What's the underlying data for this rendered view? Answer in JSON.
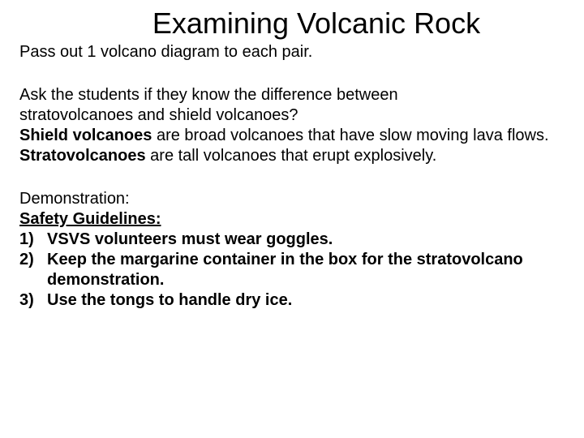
{
  "title": "Examining Volcanic Rock",
  "intro": "Pass out 1 volcano diagram to each pair.",
  "para2_line1": "Ask the students if they know the difference between",
  "para2_line2": "stratovolcanoes and shield volcanoes?",
  "shield_label": "Shield volcanoes",
  "shield_text": " are broad volcanoes that have slow moving lava flows.",
  "strato_label": "Stratovolcanoes",
  "strato_text": " are tall volcanoes that erupt explosively.",
  "demo_label": "Demonstration:",
  "safety_label": "Safety Guidelines:",
  "guidelines": [
    {
      "num": "1)",
      "text": "VSVS volunteers must wear goggles."
    },
    {
      "num": "2)",
      "text": "Keep the margarine container in the box for the stratovolcano demonstration."
    },
    {
      "num": "3)",
      "text": "Use the tongs to handle dry ice."
    }
  ],
  "colors": {
    "background": "#ffffff",
    "text": "#000000"
  },
  "typography": {
    "title_fontsize": 36,
    "body_fontsize": 20,
    "font_family": "Arial"
  }
}
